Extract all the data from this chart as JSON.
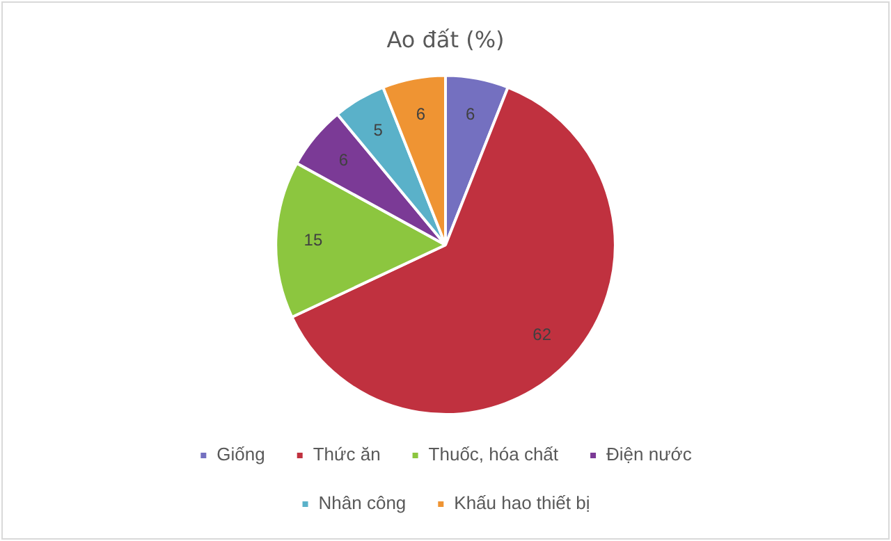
{
  "chart_data": {
    "type": "pie",
    "title": "Ao đất (%)",
    "categories": [
      "Giống",
      "Thức ăn",
      "Thuốc, hóa chất",
      "Điện nước",
      "Nhân công",
      "Khấu hao thiết bị"
    ],
    "values": [
      6,
      62,
      15,
      6,
      5,
      6
    ],
    "colors": [
      "#7470c0",
      "#c0313f",
      "#8cc63f",
      "#7b3a96",
      "#5ab1c9",
      "#ef9433"
    ],
    "data_labels": true,
    "legend": "bottom"
  }
}
